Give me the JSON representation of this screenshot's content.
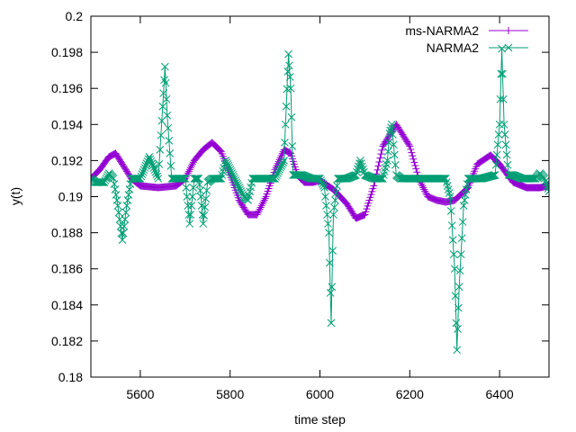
{
  "chart_data": {
    "type": "line",
    "title": "",
    "xlabel": "time step",
    "ylabel": "y(t)",
    "xlim": [
      5490,
      6510
    ],
    "ylim": [
      0.18,
      0.2
    ],
    "x_ticks": [
      5600,
      5800,
      6000,
      6200,
      6400
    ],
    "x_tick_labels": [
      "5600",
      "5800",
      "6000",
      "6200",
      "6400"
    ],
    "y_ticks": [
      0.18,
      0.182,
      0.184,
      0.186,
      0.188,
      0.19,
      0.192,
      0.194,
      0.196,
      0.198,
      0.2
    ],
    "y_tick_labels": [
      "0.18",
      "0.182",
      "0.184",
      "0.186",
      "0.188",
      "0.19",
      "0.192",
      "0.194",
      "0.196",
      "0.198",
      "0.2"
    ],
    "grid": false,
    "legend_position": "top-right",
    "series": [
      {
        "name": "ms-NARMA2",
        "color": "#9400d3",
        "marker": "plus",
        "style": "linespoints",
        "x": [
          5490,
          5510,
          5530,
          5545,
          5560,
          5580,
          5600,
          5640,
          5680,
          5700,
          5720,
          5740,
          5760,
          5780,
          5800,
          5820,
          5840,
          5860,
          5880,
          5900,
          5920,
          5935,
          5950,
          5965,
          5985,
          6000,
          6030,
          6060,
          6080,
          6100,
          6120,
          6140,
          6170,
          6200,
          6220,
          6240,
          6260,
          6280,
          6300,
          6330,
          6350,
          6380,
          6400,
          6430,
          6460,
          6490,
          6510
        ],
        "values": [
          0.191,
          0.1915,
          0.1922,
          0.1924,
          0.1918,
          0.191,
          0.1906,
          0.1905,
          0.1906,
          0.191,
          0.192,
          0.1926,
          0.193,
          0.1925,
          0.1912,
          0.1898,
          0.189,
          0.189,
          0.19,
          0.1915,
          0.1926,
          0.1924,
          0.1912,
          0.1908,
          0.1908,
          0.1909,
          0.1904,
          0.1896,
          0.1888,
          0.189,
          0.1906,
          0.1928,
          0.194,
          0.1928,
          0.191,
          0.19,
          0.1898,
          0.1897,
          0.1898,
          0.1905,
          0.1918,
          0.1923,
          0.1918,
          0.1908,
          0.1905,
          0.1905,
          0.1906
        ]
      },
      {
        "name": "NARMA2",
        "color": "#009e73",
        "marker": "x",
        "style": "linespoints",
        "x": [
          5490,
          5500,
          5520,
          5530,
          5540,
          5550,
          5560,
          5570,
          5580,
          5600,
          5620,
          5630,
          5640,
          5650,
          5655,
          5660,
          5670,
          5680,
          5700,
          5710,
          5720,
          5730,
          5735,
          5740,
          5750,
          5760,
          5780,
          5790,
          5800,
          5820,
          5830,
          5840,
          5850,
          5870,
          5900,
          5920,
          5925,
          5930,
          5935,
          5940,
          5960,
          5980,
          6000,
          6010,
          6020,
          6025,
          6030,
          6040,
          6050,
          6060,
          6080,
          6090,
          6100,
          6120,
          6140,
          6150,
          6155,
          6160,
          6170,
          6180,
          6190,
          6200,
          6210,
          6230,
          6260,
          6280,
          6290,
          6300,
          6305,
          6310,
          6320,
          6330,
          6360,
          6390,
          6400,
          6405,
          6410,
          6420,
          6430,
          6450,
          6480,
          6490,
          6500,
          6510
        ],
        "values": [
          0.191,
          0.1908,
          0.1908,
          0.1913,
          0.191,
          0.1895,
          0.1876,
          0.1895,
          0.191,
          0.191,
          0.1922,
          0.1916,
          0.191,
          0.195,
          0.1972,
          0.1945,
          0.191,
          0.191,
          0.191,
          0.1885,
          0.191,
          0.191,
          0.19,
          0.1885,
          0.1908,
          0.191,
          0.191,
          0.192,
          0.1915,
          0.1905,
          0.19,
          0.1898,
          0.191,
          0.191,
          0.191,
          0.192,
          0.195,
          0.1979,
          0.196,
          0.1912,
          0.1912,
          0.191,
          0.191,
          0.1905,
          0.188,
          0.183,
          0.189,
          0.191,
          0.191,
          0.191,
          0.1912,
          0.192,
          0.1912,
          0.191,
          0.191,
          0.192,
          0.1935,
          0.194,
          0.1912,
          0.191,
          0.191,
          0.191,
          0.191,
          0.191,
          0.191,
          0.191,
          0.19,
          0.186,
          0.1815,
          0.185,
          0.1895,
          0.191,
          0.191,
          0.1912,
          0.194,
          0.1982,
          0.194,
          0.1912,
          0.1912,
          0.191,
          0.191,
          0.1913,
          0.191,
          0.1903
        ]
      }
    ]
  }
}
